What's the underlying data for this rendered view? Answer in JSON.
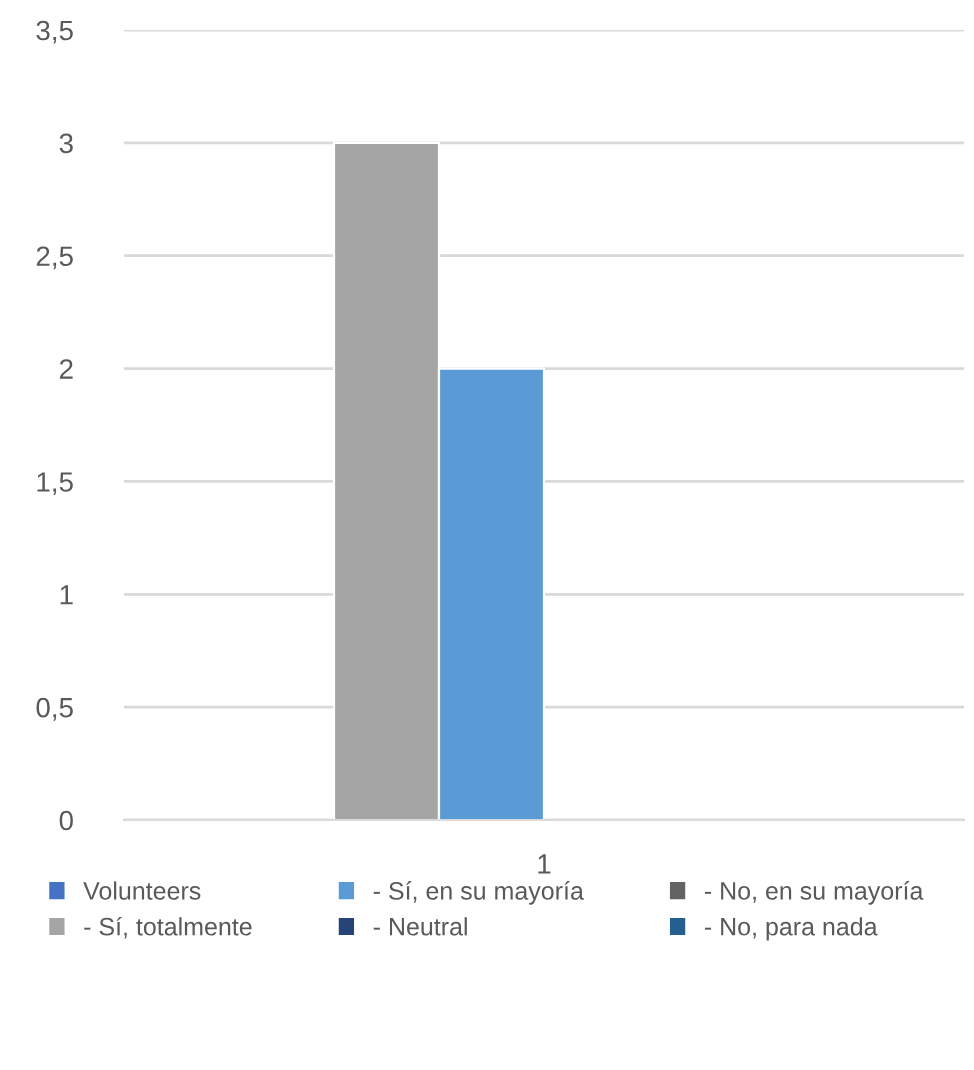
{
  "chart_data": {
    "type": "bar",
    "categories": [
      "1"
    ],
    "series": [
      {
        "name": "Volunteers",
        "color": "#4472c4",
        "values": [
          null
        ]
      },
      {
        "name": "- Sí, totalmente",
        "color": "#a5a5a5",
        "values": [
          3
        ]
      },
      {
        "name": "- Sí, en su mayoría",
        "color": "#5b9bd5",
        "values": [
          2
        ]
      },
      {
        "name": "- Neutral",
        "color": "#264478",
        "values": [
          null
        ]
      },
      {
        "name": "- No, en su mayoría",
        "color": "#636363",
        "values": [
          null
        ]
      },
      {
        "name": "- No, para nada",
        "color": "#255e91",
        "values": [
          null
        ]
      }
    ],
    "ylim": [
      0,
      3.5
    ],
    "yticks": [
      0,
      {
        "value": 0.5,
        "label": "0,5"
      },
      1,
      {
        "value": 1.5,
        "label": "1,5"
      },
      2,
      {
        "value": 2.5,
        "label": "2,5"
      },
      3,
      {
        "value": 3.5,
        "label": "3,5"
      }
    ],
    "grid": "y",
    "legend": "bottom"
  }
}
